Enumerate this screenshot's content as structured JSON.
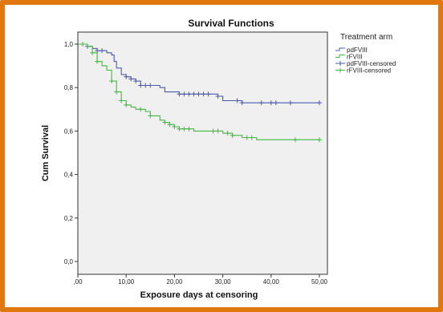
{
  "chart_data": {
    "type": "line",
    "title": "Survival Functions",
    "xlabel": "Exposure days at censoring",
    "ylabel": "Cum Survival",
    "xlim": [
      0,
      50
    ],
    "ylim": [
      0,
      1
    ],
    "x_ticks": [
      ",00",
      "10,00",
      "20,00",
      "30,00",
      "40,00",
      "50,00"
    ],
    "y_ticks": [
      "0,0",
      "0,2",
      "0,4",
      "0,6",
      "0,8",
      "1,0"
    ],
    "legend_title": "Treatment arm",
    "legend_position": "right",
    "plot_background": "#f0f0f0",
    "series": [
      {
        "name": "pdFVIII",
        "color": "#4a5ab0",
        "steps": [
          [
            0,
            1.0
          ],
          [
            2,
            0.99
          ],
          [
            3,
            0.98
          ],
          [
            4,
            0.97
          ],
          [
            6,
            0.96
          ],
          [
            7,
            0.95
          ],
          [
            7.5,
            0.92
          ],
          [
            8,
            0.89
          ],
          [
            9,
            0.86
          ],
          [
            10,
            0.85
          ],
          [
            11,
            0.84
          ],
          [
            12,
            0.83
          ],
          [
            13,
            0.81
          ],
          [
            17,
            0.8
          ],
          [
            18,
            0.78
          ],
          [
            21,
            0.77
          ],
          [
            29,
            0.76
          ],
          [
            30,
            0.74
          ],
          [
            34,
            0.73
          ],
          [
            50,
            0.73
          ]
        ],
        "censored_name": "pdFVIII-censored",
        "censored": [
          2,
          4,
          5,
          10,
          11,
          12,
          13,
          14,
          15,
          21,
          22,
          23,
          24,
          25,
          26,
          27,
          29,
          33,
          34,
          38,
          40,
          41,
          44,
          50
        ]
      },
      {
        "name": "rFVIII",
        "color": "#3dbb3d",
        "steps": [
          [
            0,
            1.0
          ],
          [
            2,
            0.99
          ],
          [
            3,
            0.96
          ],
          [
            4,
            0.92
          ],
          [
            5,
            0.9
          ],
          [
            6,
            0.88
          ],
          [
            7,
            0.83
          ],
          [
            8,
            0.78
          ],
          [
            9,
            0.74
          ],
          [
            10,
            0.72
          ],
          [
            11,
            0.71
          ],
          [
            12,
            0.7
          ],
          [
            14,
            0.69
          ],
          [
            15,
            0.67
          ],
          [
            17,
            0.65
          ],
          [
            18,
            0.64
          ],
          [
            19,
            0.63
          ],
          [
            20,
            0.62
          ],
          [
            21,
            0.61
          ],
          [
            24,
            0.6
          ],
          [
            30,
            0.59
          ],
          [
            32,
            0.58
          ],
          [
            34,
            0.57
          ],
          [
            37,
            0.56
          ],
          [
            50,
            0.56
          ]
        ],
        "censored_name": "rFVIII-censored",
        "censored": [
          1,
          3,
          4,
          7,
          8,
          9,
          10,
          13,
          15,
          18,
          19,
          20,
          21,
          22,
          23,
          28,
          29,
          31,
          32,
          35,
          36,
          45,
          50
        ]
      }
    ]
  }
}
